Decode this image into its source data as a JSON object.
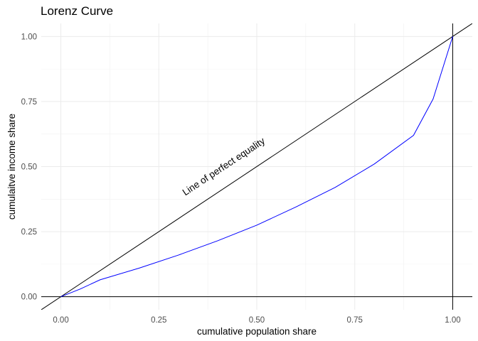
{
  "chart_data": {
    "type": "line",
    "title": "Lorenz Curve",
    "xlabel": "cumulative population share",
    "ylabel": "cumulaitve income share",
    "xlim": [
      -0.05,
      1.05
    ],
    "ylim": [
      -0.05,
      1.05
    ],
    "x_ticks": [
      "0.00",
      "0.25",
      "0.50",
      "0.75",
      "1.00"
    ],
    "y_ticks": [
      "0.00",
      "0.25",
      "0.50",
      "0.75",
      "1.00"
    ],
    "grid": true,
    "series": [
      {
        "color": "#0000ff",
        "x": [
          0,
          0.05,
          0.1,
          0.2,
          0.3,
          0.4,
          0.5,
          0.6,
          0.7,
          0.8,
          0.9,
          0.95,
          1.0
        ],
        "y": [
          0,
          0.03,
          0.065,
          0.11,
          0.16,
          0.215,
          0.275,
          0.345,
          0.42,
          0.51,
          0.62,
          0.76,
          1.0
        ]
      }
    ],
    "reference_lines": {
      "equality_color": "#000000",
      "hline_y": 0,
      "vline_x": 1
    },
    "annotation": {
      "text": "Line of perfect equality",
      "x": 0.42,
      "y": 0.49
    }
  }
}
